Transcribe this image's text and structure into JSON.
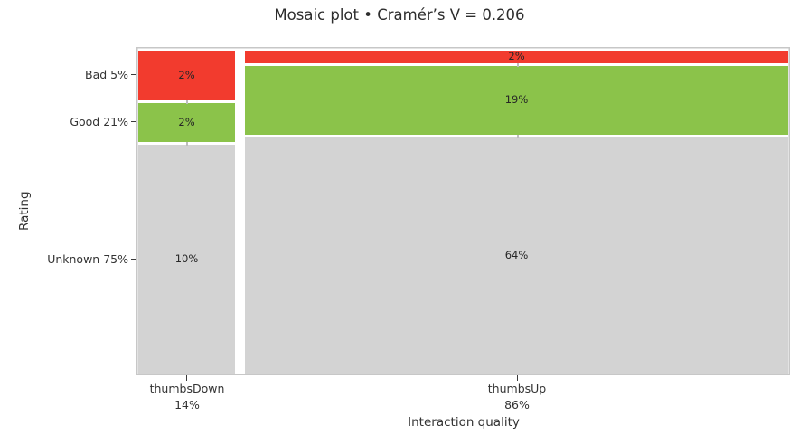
{
  "title": "Mosaic plot • Cramér’s V = 0.206",
  "chart_data": {
    "type": "mosaic",
    "title": "Mosaic plot • Cramér’s V = 0.206",
    "cramers_v": 0.206,
    "xlabel": "Interaction quality",
    "ylabel": "Rating",
    "x_categories": [
      "thumbsDown",
      "thumbsUp"
    ],
    "y_categories": [
      "Bad",
      "Good",
      "Unknown"
    ],
    "rows": [
      {
        "label": "Bad",
        "share": "5%",
        "tick": "Bad 5%",
        "color": "#f23b2e"
      },
      {
        "label": "Good",
        "share": "21%",
        "tick": "Good 21%",
        "color": "#8bc34a"
      },
      {
        "label": "Unknown",
        "share": "75%",
        "tick": "Unknown 75%",
        "color": "#d3d3d3"
      }
    ],
    "columns": [
      {
        "label": "thumbsDown",
        "share": "14%",
        "cells": [
          {
            "row": "Bad",
            "value": "2%"
          },
          {
            "row": "Good",
            "value": "2%"
          },
          {
            "row": "Unknown",
            "value": "10%"
          }
        ]
      },
      {
        "label": "thumbsUp",
        "share": "86%",
        "cells": [
          {
            "row": "Bad",
            "value": "2%"
          },
          {
            "row": "Good",
            "value": "19%"
          },
          {
            "row": "Unknown",
            "value": "64%"
          }
        ]
      }
    ],
    "legend": "none",
    "grid": false
  },
  "colors": {
    "bad": "#f23b2e",
    "good": "#8bc34a",
    "unknown": "#d3d3d3",
    "spine": "#c7c7c7",
    "text": "#333333"
  }
}
